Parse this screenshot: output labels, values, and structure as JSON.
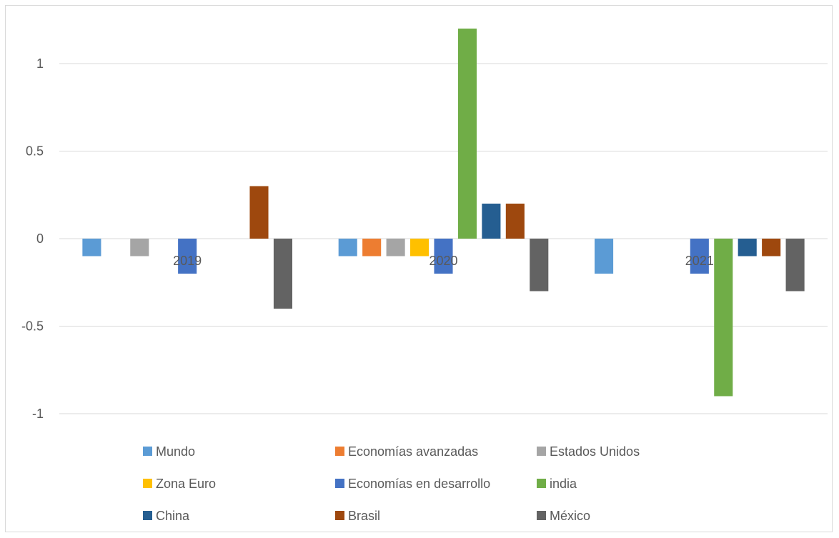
{
  "chart_data": {
    "type": "bar",
    "title": "",
    "xlabel": "",
    "ylabel": "",
    "ylim": [
      -1,
      1.2
    ],
    "yticks": [
      1,
      0.5,
      0,
      -0.5,
      -1
    ],
    "ytick_labels": [
      "1",
      "0.5",
      "0",
      "-0.5",
      "-1"
    ],
    "grid": true,
    "legend_position": "bottom",
    "categories": [
      "2019",
      "2020",
      "2021"
    ],
    "series": [
      {
        "name": "Mundo",
        "color": "#5b9bd5",
        "values": [
          -0.1,
          -0.1,
          -0.2
        ]
      },
      {
        "name": "Economías avanzadas",
        "color": "#ed7d31",
        "values": [
          0,
          -0.1,
          0
        ]
      },
      {
        "name": "Estados Unidos",
        "color": "#a5a5a5",
        "values": [
          -0.1,
          -0.1,
          0
        ]
      },
      {
        "name": "Zona Euro",
        "color": "#ffc000",
        "values": [
          0,
          -0.1,
          0
        ]
      },
      {
        "name": "Economías en desarrollo",
        "color": "#4472c4",
        "values": [
          -0.2,
          -0.2,
          -0.2
        ]
      },
      {
        "name": "india",
        "color": "#70ad47",
        "values": [
          0,
          1.2,
          -0.9
        ]
      },
      {
        "name": "China",
        "color": "#255e91",
        "values": [
          0,
          0.2,
          -0.1
        ]
      },
      {
        "name": "Brasil",
        "color": "#9e480e",
        "values": [
          0.3,
          0.2,
          -0.1
        ]
      },
      {
        "name": "México",
        "color": "#636363",
        "values": [
          -0.4,
          -0.3,
          -0.3
        ]
      }
    ]
  }
}
